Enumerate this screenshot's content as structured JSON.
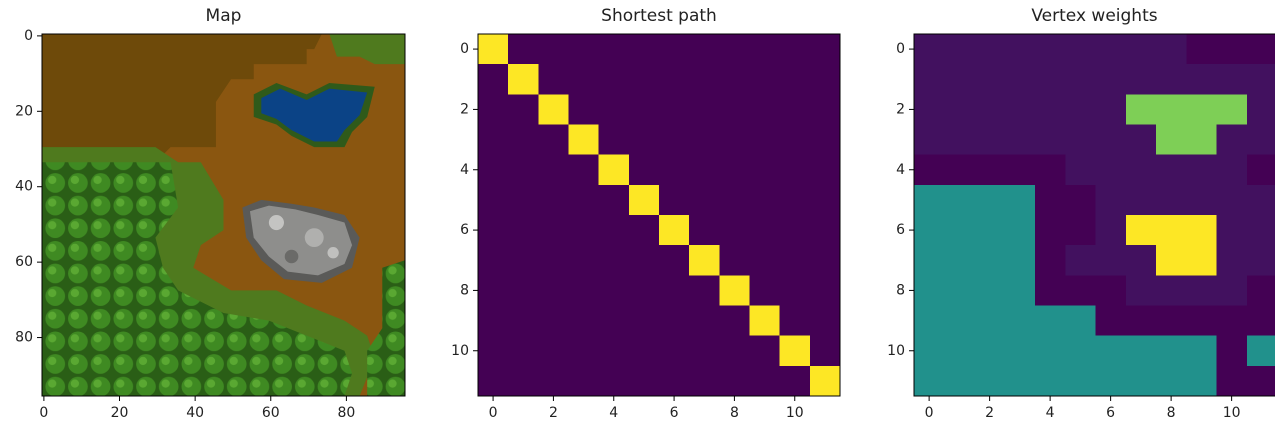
{
  "chart_data": [
    {
      "type": "image",
      "title": "Map",
      "xlim": [
        -0.5,
        95.5
      ],
      "ylim": [
        95.5,
        -0.5
      ],
      "xticks": [
        0,
        20,
        40,
        60,
        80
      ],
      "yticks": [
        0,
        20,
        40,
        60,
        80
      ]
    },
    {
      "type": "heatmap",
      "title": "Shortest path",
      "cmap": "viridis",
      "clim": [
        0,
        1
      ],
      "xlim": [
        -0.5,
        11.5
      ],
      "ylim": [
        11.5,
        -0.5
      ],
      "xticks": [
        0,
        2,
        4,
        6,
        8,
        10
      ],
      "yticks": [
        0,
        2,
        4,
        6,
        8,
        10
      ],
      "values": [
        [
          1,
          0,
          0,
          0,
          0,
          0,
          0,
          0,
          0,
          0,
          0,
          0
        ],
        [
          0,
          1,
          0,
          0,
          0,
          0,
          0,
          0,
          0,
          0,
          0,
          0
        ],
        [
          0,
          0,
          1,
          0,
          0,
          0,
          0,
          0,
          0,
          0,
          0,
          0
        ],
        [
          0,
          0,
          0,
          1,
          0,
          0,
          0,
          0,
          0,
          0,
          0,
          0
        ],
        [
          0,
          0,
          0,
          0,
          1,
          0,
          0,
          0,
          0,
          0,
          0,
          0
        ],
        [
          0,
          0,
          0,
          0,
          0,
          1,
          0,
          0,
          0,
          0,
          0,
          0
        ],
        [
          0,
          0,
          0,
          0,
          0,
          0,
          1,
          0,
          0,
          0,
          0,
          0
        ],
        [
          0,
          0,
          0,
          0,
          0,
          0,
          0,
          1,
          0,
          0,
          0,
          0
        ],
        [
          0,
          0,
          0,
          0,
          0,
          0,
          0,
          0,
          1,
          0,
          0,
          0
        ],
        [
          0,
          0,
          0,
          0,
          0,
          0,
          0,
          0,
          0,
          1,
          0,
          0
        ],
        [
          0,
          0,
          0,
          0,
          0,
          0,
          0,
          0,
          0,
          0,
          1,
          0
        ],
        [
          0,
          0,
          0,
          0,
          0,
          0,
          0,
          0,
          0,
          0,
          0,
          1
        ]
      ]
    },
    {
      "type": "heatmap",
      "title": "Vertex weights",
      "cmap": "viridis",
      "clim": [
        0,
        1
      ],
      "xlim": [
        -0.5,
        11.5
      ],
      "ylim": [
        11.5,
        -0.5
      ],
      "xticks": [
        0,
        2,
        4,
        6,
        8,
        10
      ],
      "yticks": [
        0,
        2,
        4,
        6,
        8,
        10
      ],
      "values": [
        [
          0.05,
          0.05,
          0.05,
          0.05,
          0.05,
          0.05,
          0.05,
          0.05,
          0.05,
          0,
          0,
          0
        ],
        [
          0.05,
          0.05,
          0.05,
          0.05,
          0.05,
          0.05,
          0.05,
          0.05,
          0.05,
          0.05,
          0.05,
          0.05
        ],
        [
          0.05,
          0.05,
          0.05,
          0.05,
          0.05,
          0.05,
          0.05,
          0.8,
          0.8,
          0.8,
          0.8,
          0.05
        ],
        [
          0.05,
          0.05,
          0.05,
          0.05,
          0.05,
          0.05,
          0.05,
          0.05,
          0.8,
          0.8,
          0.05,
          0.05
        ],
        [
          0,
          0,
          0,
          0,
          0,
          0.05,
          0.05,
          0.05,
          0.05,
          0.05,
          0.05,
          0
        ],
        [
          0.5,
          0.5,
          0.5,
          0.5,
          0,
          0,
          0.05,
          0.05,
          0.05,
          0.05,
          0.05,
          0.05
        ],
        [
          0.5,
          0.5,
          0.5,
          0.5,
          0,
          0,
          0.05,
          1,
          1,
          1,
          0.05,
          0.05
        ],
        [
          0.5,
          0.5,
          0.5,
          0.5,
          0,
          0.05,
          0.05,
          0.05,
          1,
          1,
          0.05,
          0.05
        ],
        [
          0.5,
          0.5,
          0.5,
          0.5,
          0,
          0,
          0,
          0.05,
          0.05,
          0.05,
          0.05,
          0
        ],
        [
          0.5,
          0.5,
          0.5,
          0.5,
          0.5,
          0.5,
          0,
          0,
          0,
          0,
          0,
          0
        ],
        [
          0.5,
          0.5,
          0.5,
          0.5,
          0.5,
          0.5,
          0.5,
          0.5,
          0.5,
          0.5,
          0,
          0.5
        ],
        [
          0.5,
          0.5,
          0.5,
          0.5,
          0.5,
          0.5,
          0.5,
          0.5,
          0.5,
          0.5,
          0,
          0
        ]
      ]
    }
  ]
}
